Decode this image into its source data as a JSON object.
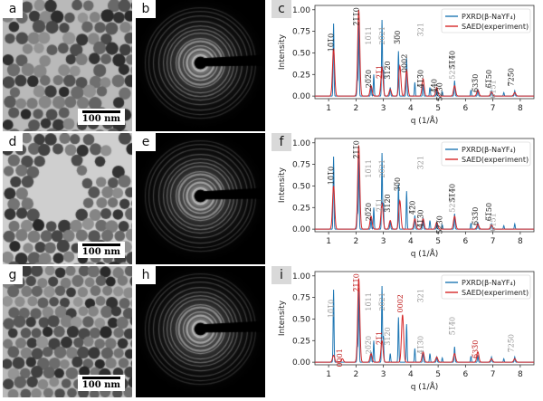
{
  "figure": {
    "rows": [
      {
        "tem_tag": "a",
        "saed_tag": "b",
        "plot_tag": "c",
        "scalebar": "100 nm",
        "tem_style": "sparse-uniform",
        "blue_labels": [
          {
            "text": "10̅1̅0",
            "q": 1.18,
            "y": 0.62,
            "color": "#222"
          },
          {
            "text": "2̅1̅1̅0",
            "q": 2.1,
            "y": 0.92,
            "color": "#222"
          },
          {
            "text": "10̅11",
            "q": 2.55,
            "y": 0.7,
            "color": "#999"
          },
          {
            "text": "20̅21",
            "q": 3.05,
            "y": 0.7,
            "color": "#999"
          },
          {
            "text": "3̅0̅0",
            "q": 3.6,
            "y": 0.68,
            "color": "#222"
          },
          {
            "text": "3̅21",
            "q": 4.45,
            "y": 0.77,
            "color": "#999"
          },
          {
            "text": "20̅2̅0",
            "q": 2.55,
            "y": 0.2,
            "color": "#222"
          },
          {
            "text": "2̅1̅1",
            "q": 2.95,
            "y": 0.28,
            "color": "#c02020"
          },
          {
            "text": "3̅1̅2̅0",
            "q": 3.25,
            "y": 0.3,
            "color": "#222"
          },
          {
            "text": "0002",
            "q": 3.85,
            "y": 0.38,
            "color": "#222"
          },
          {
            "text": "4̅1̅3̅0",
            "q": 4.45,
            "y": 0.2,
            "color": "#222"
          },
          {
            "text": "4̅40",
            "q": 4.95,
            "y": 0.12,
            "color": "#222"
          },
          {
            "text": "5̅2̅3̅0",
            "q": 5.15,
            "y": 0.05,
            "color": "#222"
          },
          {
            "text": "5̅1̅4̅0",
            "q": 5.6,
            "y": 0.42,
            "color": "#222"
          },
          {
            "text": "5231",
            "q": 5.6,
            "y": 0.3,
            "color": "#999"
          },
          {
            "text": "6̅33̅0",
            "q": 6.45,
            "y": 0.15,
            "color": "#222"
          },
          {
            "text": "6̅1̅50",
            "q": 6.95,
            "y": 0.2,
            "color": "#222"
          },
          {
            "text": "6151",
            "q": 7.1,
            "y": 0.08,
            "color": "#999"
          },
          {
            "text": "7̅25̅0",
            "q": 7.75,
            "y": 0.22,
            "color": "#222"
          }
        ]
      },
      {
        "tem_tag": "d",
        "saed_tag": "e",
        "plot_tag": "f",
        "scalebar": "100 nm",
        "tem_style": "clustered-gap",
        "blue_labels": [
          {
            "text": "10̅1̅0",
            "q": 1.18,
            "y": 0.62,
            "color": "#222"
          },
          {
            "text": "2̅1̅1̅0",
            "q": 2.1,
            "y": 0.92,
            "color": "#222"
          },
          {
            "text": "10̅11",
            "q": 2.55,
            "y": 0.7,
            "color": "#999"
          },
          {
            "text": "20̅21",
            "q": 3.05,
            "y": 0.7,
            "color": "#999"
          },
          {
            "text": "3̅0̅0",
            "q": 3.6,
            "y": 0.52,
            "color": "#222"
          },
          {
            "text": "3̅21",
            "q": 4.45,
            "y": 0.77,
            "color": "#999"
          },
          {
            "text": "20̅2̅0",
            "q": 2.55,
            "y": 0.2,
            "color": "#222"
          },
          {
            "text": "2̅1̅1",
            "q": 2.95,
            "y": 0.28,
            "color": "#999"
          },
          {
            "text": "3̅1̅2̅0",
            "q": 3.25,
            "y": 0.3,
            "color": "#222"
          },
          {
            "text": "4̅2̅0",
            "q": 4.15,
            "y": 0.25,
            "color": "#222"
          },
          {
            "text": "4̅1̅3̅0",
            "q": 4.45,
            "y": 0.12,
            "color": "#222"
          },
          {
            "text": "5̅2̅3̅0",
            "q": 5.15,
            "y": 0.05,
            "color": "#222"
          },
          {
            "text": "5̅1̅4̅0",
            "q": 5.6,
            "y": 0.42,
            "color": "#222"
          },
          {
            "text": "5231",
            "q": 5.6,
            "y": 0.3,
            "color": "#999"
          },
          {
            "text": "6̅33̅0",
            "q": 6.45,
            "y": 0.15,
            "color": "#222"
          },
          {
            "text": "6̅1̅50",
            "q": 6.95,
            "y": 0.2,
            "color": "#222"
          },
          {
            "text": "6151",
            "q": 7.1,
            "y": 0.08,
            "color": "#999"
          }
        ]
      },
      {
        "tem_tag": "g",
        "saed_tag": "h",
        "plot_tag": "i",
        "scalebar": "100 nm",
        "tem_style": "dense-uniform",
        "blue_labels": [
          {
            "text": "10̅1̅0",
            "q": 1.18,
            "y": 0.62,
            "color": "#999"
          },
          {
            "text": "2̅1̅1̅0",
            "q": 2.1,
            "y": 0.92,
            "color": "#c02020"
          },
          {
            "text": "10̅11",
            "q": 2.55,
            "y": 0.7,
            "color": "#999"
          },
          {
            "text": "20̅21",
            "q": 3.05,
            "y": 0.7,
            "color": "#999"
          },
          {
            "text": "0002",
            "q": 3.7,
            "y": 0.68,
            "color": "#c02020"
          },
          {
            "text": "3̅21",
            "q": 4.45,
            "y": 0.77,
            "color": "#999"
          },
          {
            "text": "0001",
            "q": 1.5,
            "y": 0.05,
            "color": "#c02020"
          },
          {
            "text": "20̅2̅0",
            "q": 2.55,
            "y": 0.2,
            "color": "#999"
          },
          {
            "text": "2̅1̅1",
            "q": 2.95,
            "y": 0.28,
            "color": "#c02020"
          },
          {
            "text": "3̅1̅2̅0",
            "q": 3.25,
            "y": 0.3,
            "color": "#999"
          },
          {
            "text": "4̅1̅3̅0",
            "q": 4.45,
            "y": 0.2,
            "color": "#999"
          },
          {
            "text": "5̅1̅4̅0",
            "q": 5.6,
            "y": 0.42,
            "color": "#999"
          },
          {
            "text": "6̅33̅0",
            "q": 6.45,
            "y": 0.15,
            "color": "#c02020"
          },
          {
            "text": "7̅25̅0",
            "q": 7.75,
            "y": 0.22,
            "color": "#999"
          }
        ]
      }
    ]
  },
  "chart_data": [
    {
      "type": "line",
      "xlabel": "q (1/Å)",
      "ylabel": "Intensity",
      "xlim": [
        0.5,
        8.5
      ],
      "ylim": [
        -0.03,
        1.05
      ],
      "xticks": [
        1,
        2,
        3,
        4,
        5,
        6,
        7,
        8
      ],
      "yticks": [
        0.0,
        0.25,
        0.5,
        0.75,
        1.0
      ],
      "legend": "top-right",
      "series": [
        {
          "name": "PXRD(β-NaYF₄)",
          "color": "#1f77b4",
          "peaks": [
            [
              1.18,
              0.84
            ],
            [
              2.05,
              0.18
            ],
            [
              2.1,
              0.86
            ],
            [
              2.55,
              0.12
            ],
            [
              2.65,
              0.25
            ],
            [
              2.95,
              0.88
            ],
            [
              3.0,
              0.3
            ],
            [
              3.25,
              0.1
            ],
            [
              3.55,
              0.52
            ],
            [
              3.85,
              0.44
            ],
            [
              4.15,
              0.16
            ],
            [
              4.45,
              0.13
            ],
            [
              4.7,
              0.1
            ],
            [
              4.95,
              0.06
            ],
            [
              5.15,
              0.05
            ],
            [
              5.6,
              0.18
            ],
            [
              6.2,
              0.07
            ],
            [
              6.45,
              0.08
            ],
            [
              6.95,
              0.06
            ],
            [
              7.4,
              0.04
            ],
            [
              7.8,
              0.06
            ]
          ]
        },
        {
          "name": "SAED(experiment)",
          "color": "#d62728",
          "peaks": [
            [
              1.18,
              0.55
            ],
            [
              2.1,
              1.0
            ],
            [
              2.55,
              0.12
            ],
            [
              2.95,
              0.33
            ],
            [
              3.25,
              0.08
            ],
            [
              3.6,
              0.35
            ],
            [
              3.85,
              0.3
            ],
            [
              4.45,
              0.2
            ],
            [
              4.95,
              0.1
            ],
            [
              5.6,
              0.12
            ],
            [
              6.45,
              0.07
            ],
            [
              6.95,
              0.05
            ],
            [
              7.8,
              0.04
            ]
          ]
        }
      ]
    },
    {
      "type": "line",
      "xlabel": "q (1/Å)",
      "ylabel": "Intensity",
      "xlim": [
        0.5,
        8.5
      ],
      "ylim": [
        -0.03,
        1.05
      ],
      "xticks": [
        1,
        2,
        3,
        4,
        5,
        6,
        7,
        8
      ],
      "yticks": [
        0.0,
        0.25,
        0.5,
        0.75,
        1.0
      ],
      "legend": "top-right",
      "series": [
        {
          "name": "PXRD(β-NaYF₄)",
          "color": "#1f77b4",
          "peaks": [
            [
              1.18,
              0.84
            ],
            [
              2.05,
              0.18
            ],
            [
              2.1,
              0.86
            ],
            [
              2.55,
              0.12
            ],
            [
              2.65,
              0.25
            ],
            [
              2.95,
              0.88
            ],
            [
              3.0,
              0.3
            ],
            [
              3.25,
              0.1
            ],
            [
              3.55,
              0.52
            ],
            [
              3.85,
              0.44
            ],
            [
              4.15,
              0.16
            ],
            [
              4.45,
              0.13
            ],
            [
              4.7,
              0.1
            ],
            [
              4.95,
              0.06
            ],
            [
              5.15,
              0.05
            ],
            [
              5.6,
              0.18
            ],
            [
              6.2,
              0.07
            ],
            [
              6.45,
              0.08
            ],
            [
              6.95,
              0.06
            ],
            [
              7.4,
              0.04
            ],
            [
              7.8,
              0.06
            ]
          ]
        },
        {
          "name": "SAED(experiment)",
          "color": "#d62728",
          "peaks": [
            [
              1.18,
              0.5
            ],
            [
              2.1,
              0.97
            ],
            [
              2.55,
              0.15
            ],
            [
              2.95,
              0.3
            ],
            [
              3.25,
              0.1
            ],
            [
              3.6,
              0.33
            ],
            [
              4.15,
              0.12
            ],
            [
              4.45,
              0.12
            ],
            [
              4.95,
              0.08
            ],
            [
              5.6,
              0.15
            ],
            [
              6.45,
              0.06
            ],
            [
              6.95,
              0.05
            ]
          ]
        }
      ]
    },
    {
      "type": "line",
      "xlabel": "q (1/Å)",
      "ylabel": "Intensity",
      "xlim": [
        0.5,
        8.5
      ],
      "ylim": [
        -0.03,
        1.05
      ],
      "xticks": [
        1,
        2,
        3,
        4,
        5,
        6,
        7,
        8
      ],
      "yticks": [
        0.0,
        0.25,
        0.5,
        0.75,
        1.0
      ],
      "legend": "top-right",
      "series": [
        {
          "name": "PXRD(β-NaYF₄)",
          "color": "#1f77b4",
          "peaks": [
            [
              1.18,
              0.84
            ],
            [
              2.05,
              0.18
            ],
            [
              2.1,
              0.86
            ],
            [
              2.55,
              0.12
            ],
            [
              2.65,
              0.25
            ],
            [
              2.95,
              0.88
            ],
            [
              3.0,
              0.3
            ],
            [
              3.25,
              0.1
            ],
            [
              3.55,
              0.52
            ],
            [
              3.85,
              0.44
            ],
            [
              4.15,
              0.16
            ],
            [
              4.45,
              0.13
            ],
            [
              4.7,
              0.1
            ],
            [
              4.95,
              0.06
            ],
            [
              5.15,
              0.05
            ],
            [
              5.6,
              0.18
            ],
            [
              6.2,
              0.07
            ],
            [
              6.45,
              0.08
            ],
            [
              6.95,
              0.06
            ],
            [
              7.4,
              0.04
            ],
            [
              7.8,
              0.06
            ]
          ]
        },
        {
          "name": "SAED(experiment)",
          "color": "#d62728",
          "peaks": [
            [
              1.18,
              0.08
            ],
            [
              1.5,
              0.04
            ],
            [
              2.1,
              0.97
            ],
            [
              2.55,
              0.1
            ],
            [
              2.95,
              0.25
            ],
            [
              3.7,
              0.55
            ],
            [
              4.45,
              0.12
            ],
            [
              4.95,
              0.06
            ],
            [
              5.6,
              0.1
            ],
            [
              6.45,
              0.12
            ],
            [
              6.95,
              0.04
            ],
            [
              7.8,
              0.04
            ]
          ]
        }
      ]
    }
  ]
}
